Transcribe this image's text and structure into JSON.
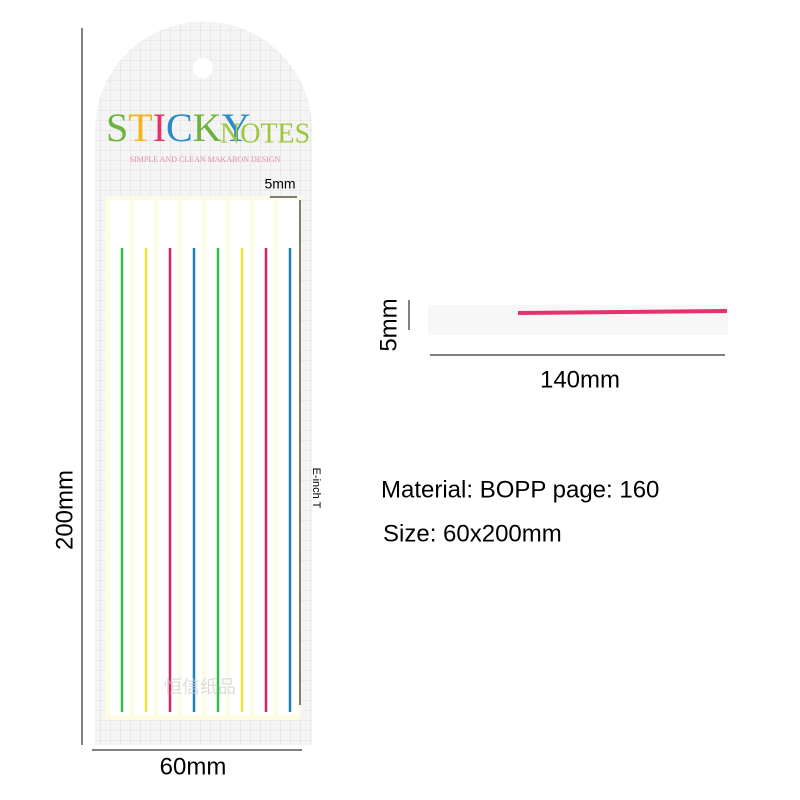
{
  "product": {
    "brand": "STICKY",
    "brand_suffix": "NOTES",
    "tagline": "SIMPLE AND CLEAN MAKABON DESIGN",
    "watermark": "恒信纸品",
    "strip_width_label": "5mm",
    "side_label": "E-inch T"
  },
  "dimensions": {
    "height": "200mm",
    "width": "60mm",
    "single_height": "5mm",
    "single_length": "140mm"
  },
  "specs": {
    "material": "Material: BOPP page: 160",
    "size": "Size: 60x200mm"
  }
}
